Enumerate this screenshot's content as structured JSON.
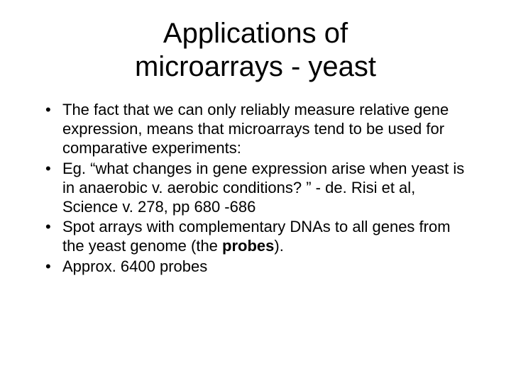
{
  "title_line1": "Applications of",
  "title_line2": "microarrays - yeast",
  "bullets": [
    "The fact that we can only reliably measure relative gene expression, means that microarrays tend to be used for comparative experiments:",
    "Eg. “what changes in gene expression arise when yeast is in anaerobic v. aerobic conditions? ” - de. Risi et al, Science v. 278, pp 680 -686",
    "Spot arrays with complementary DNAs to all genes from the yeast genome (the ",
    "Approx. 6400 probes"
  ],
  "bullet3_bold": "probes",
  "bullet3_tail": ").",
  "styling": {
    "background_color": "#ffffff",
    "text_color": "#000000",
    "font_family": "Verdana",
    "title_fontsize": 40,
    "body_fontsize": 22,
    "slide_width": 720,
    "slide_height": 540
  }
}
